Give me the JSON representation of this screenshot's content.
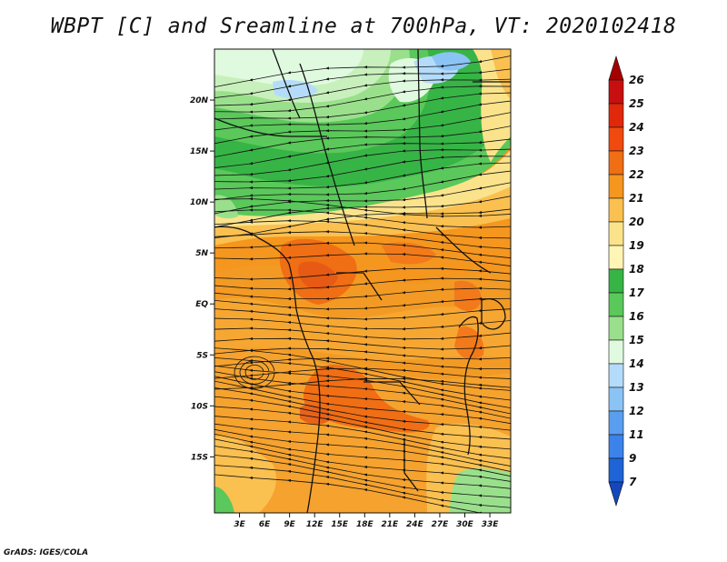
{
  "title": "WBPT [C] and Sreamline at 700hPa, VT: 2020102418",
  "footer": "GrADS: IGES/COLA",
  "map": {
    "lon_range": [
      0,
      35.5
    ],
    "lat_range": [
      -20.5,
      25
    ],
    "lat_ticks": [
      {
        "value": 20,
        "label": "20N"
      },
      {
        "value": 15,
        "label": "15N"
      },
      {
        "value": 10,
        "label": "10N"
      },
      {
        "value": 5,
        "label": "5N"
      },
      {
        "value": 0,
        "label": "EQ"
      },
      {
        "value": -5,
        "label": "5S"
      },
      {
        "value": -10,
        "label": "10S"
      },
      {
        "value": -15,
        "label": "15S"
      }
    ],
    "lon_ticks": [
      {
        "value": 3,
        "label": "3E"
      },
      {
        "value": 6,
        "label": "6E"
      },
      {
        "value": 9,
        "label": "9E"
      },
      {
        "value": 12,
        "label": "12E"
      },
      {
        "value": 15,
        "label": "15E"
      },
      {
        "value": 18,
        "label": "18E"
      },
      {
        "value": 21,
        "label": "21E"
      },
      {
        "value": 24,
        "label": "24E"
      },
      {
        "value": 27,
        "label": "27E"
      },
      {
        "value": 30,
        "label": "30E"
      },
      {
        "value": 33,
        "label": "33E"
      }
    ]
  },
  "colorbar": {
    "levels": [
      {
        "label": "26",
        "color": "#a50000"
      },
      {
        "label": "25",
        "color": "#c80f0f"
      },
      {
        "label": "24",
        "color": "#e1280a"
      },
      {
        "label": "23",
        "color": "#f04a0f"
      },
      {
        "label": "22",
        "color": "#f06e14"
      },
      {
        "label": "21",
        "color": "#f5961e"
      },
      {
        "label": "20",
        "color": "#fac050"
      },
      {
        "label": "19",
        "color": "#fbe38c"
      },
      {
        "label": "18",
        "color": "#fff5b4"
      },
      {
        "label": "17",
        "color": "#37b446"
      },
      {
        "label": "16",
        "color": "#5ac85a"
      },
      {
        "label": "15",
        "color": "#9ae08c"
      },
      {
        "label": "14",
        "color": "#e0fae0"
      },
      {
        "label": "13",
        "color": "#b4dcfa"
      },
      {
        "label": "12",
        "color": "#8cc3f5"
      },
      {
        "label": "11",
        "color": "#5a9ef0"
      },
      {
        "label": "9",
        "color": "#3c82eb"
      },
      {
        "label": "7",
        "color": "#1e64d7"
      },
      {
        "label": "",
        "color": "#1446be"
      }
    ]
  }
}
